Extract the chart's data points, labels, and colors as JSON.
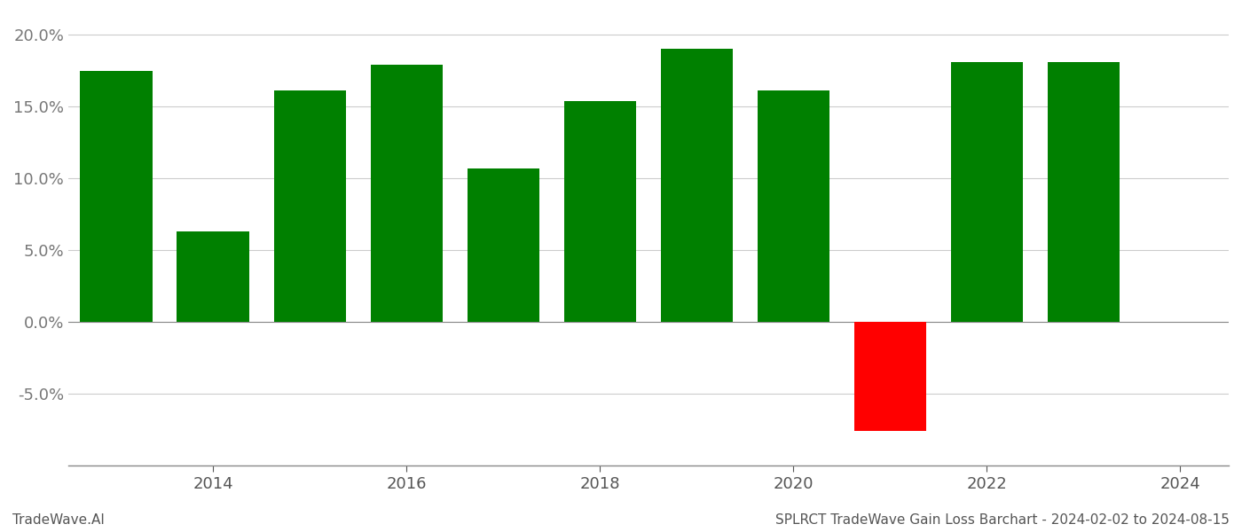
{
  "years": [
    2013,
    2014,
    2015,
    2016,
    2017,
    2018,
    2019,
    2020,
    2021,
    2022,
    2023
  ],
  "values": [
    0.175,
    0.063,
    0.161,
    0.179,
    0.107,
    0.154,
    0.19,
    0.161,
    -0.076,
    0.181,
    0.181
  ],
  "colors": [
    "#008000",
    "#008000",
    "#008000",
    "#008000",
    "#008000",
    "#008000",
    "#008000",
    "#008000",
    "#ff0000",
    "#008000",
    "#008000"
  ],
  "title": "SPLRCT TradeWave Gain Loss Barchart - 2024-02-02 to 2024-08-15",
  "footer_left": "TradeWave.AI",
  "ylim": [
    -0.1,
    0.215
  ],
  "yticks": [
    -0.05,
    0.0,
    0.05,
    0.1,
    0.15,
    0.2
  ],
  "xlim": [
    2012.5,
    2024.5
  ],
  "xticks": [
    2014,
    2016,
    2018,
    2020,
    2022,
    2024
  ],
  "background_color": "#ffffff",
  "grid_color": "#cccccc",
  "bar_width": 0.75,
  "tick_labelsize": 13,
  "footer_fontsize": 11
}
